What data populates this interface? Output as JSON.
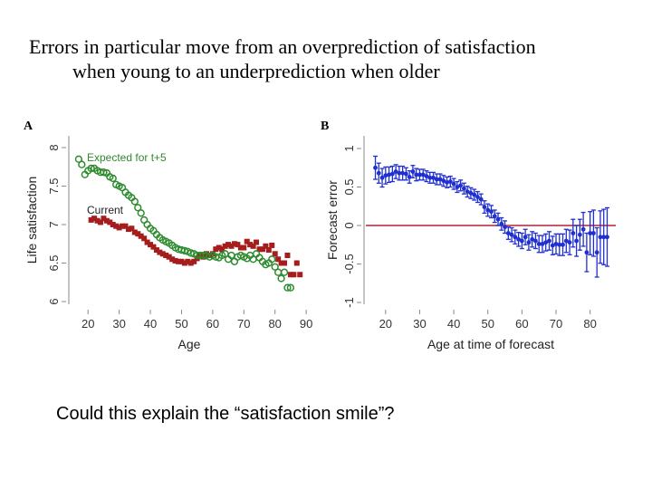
{
  "slide": {
    "title_line1": "Errors in particular move from an overprediction of satisfaction",
    "title_line2": "when young to an underprediction when older",
    "caption": "Could this explain the “satisfaction smile”?"
  },
  "colors": {
    "expected": "#2e8b2e",
    "current": "#a51d1d",
    "forecast": "#1f2fd0",
    "zero_line": "#b22234",
    "axis": "#888888"
  },
  "chart_data": [
    {
      "panel": "A",
      "type": "scatter",
      "xlabel": "Age",
      "ylabel": "Life satisfaction",
      "xlim": [
        15,
        92
      ],
      "ylim": [
        6,
        8
      ],
      "xticks": [
        "20",
        "30",
        "40",
        "50",
        "60",
        "70",
        "80",
        "90"
      ],
      "yticks": [
        "6",
        "6.5",
        "7",
        "7.5",
        "8"
      ],
      "series": [
        {
          "name": "Expected for t+5",
          "marker": "hollow-circle",
          "x": [
            17,
            18,
            19,
            20,
            21,
            22,
            23,
            24,
            25,
            26,
            27,
            28,
            29,
            30,
            31,
            32,
            33,
            34,
            35,
            36,
            37,
            38,
            39,
            40,
            41,
            42,
            43,
            44,
            45,
            46,
            47,
            48,
            49,
            50,
            51,
            52,
            53,
            54,
            55,
            56,
            57,
            58,
            59,
            60,
            61,
            62,
            63,
            64,
            65,
            66,
            67,
            68,
            69,
            70,
            71,
            72,
            73,
            74,
            75,
            76,
            77,
            78,
            79,
            80,
            81,
            82,
            83,
            84,
            85
          ],
          "y": [
            7.85,
            7.78,
            7.65,
            7.7,
            7.73,
            7.73,
            7.7,
            7.68,
            7.68,
            7.67,
            7.62,
            7.6,
            7.52,
            7.5,
            7.48,
            7.42,
            7.38,
            7.35,
            7.3,
            7.22,
            7.15,
            7.06,
            7.0,
            6.95,
            6.92,
            6.87,
            6.83,
            6.8,
            6.78,
            6.76,
            6.73,
            6.7,
            6.68,
            6.67,
            6.66,
            6.65,
            6.63,
            6.62,
            6.6,
            6.6,
            6.6,
            6.6,
            6.58,
            6.6,
            6.58,
            6.57,
            6.6,
            6.62,
            6.55,
            6.6,
            6.52,
            6.58,
            6.6,
            6.58,
            6.56,
            6.6,
            6.55,
            6.62,
            6.57,
            6.52,
            6.48,
            6.5,
            6.55,
            6.45,
            6.38,
            6.3,
            6.38,
            6.18,
            6.18
          ]
        },
        {
          "name": "Current",
          "marker": "filled-square",
          "x": [
            21,
            22,
            23,
            24,
            25,
            26,
            27,
            28,
            29,
            30,
            31,
            32,
            33,
            34,
            35,
            36,
            37,
            38,
            39,
            40,
            41,
            42,
            43,
            44,
            45,
            46,
            47,
            48,
            49,
            50,
            51,
            52,
            53,
            54,
            55,
            56,
            57,
            58,
            59,
            60,
            61,
            62,
            63,
            64,
            65,
            66,
            67,
            68,
            69,
            70,
            71,
            72,
            73,
            74,
            75,
            76,
            77,
            78,
            79,
            80,
            81,
            82,
            83,
            84,
            85,
            86,
            87,
            88
          ],
          "y": [
            7.06,
            7.08,
            7.05,
            7.03,
            7.08,
            7.05,
            7.03,
            7.0,
            6.98,
            6.96,
            6.98,
            6.98,
            6.94,
            6.95,
            6.9,
            6.88,
            6.85,
            6.82,
            6.77,
            6.74,
            6.71,
            6.67,
            6.64,
            6.62,
            6.6,
            6.58,
            6.55,
            6.53,
            6.52,
            6.52,
            6.5,
            6.52,
            6.5,
            6.52,
            6.56,
            6.6,
            6.58,
            6.62,
            6.6,
            6.62,
            6.68,
            6.7,
            6.68,
            6.72,
            6.74,
            6.72,
            6.75,
            6.74,
            6.7,
            6.7,
            6.78,
            6.74,
            6.72,
            6.77,
            6.68,
            6.68,
            6.72,
            6.67,
            6.73,
            6.62,
            6.55,
            6.5,
            6.5,
            6.6,
            6.35,
            6.35,
            6.5,
            6.35
          ]
        }
      ],
      "legend": [
        {
          "label": "Expected for t+5"
        },
        {
          "label": "Current"
        }
      ]
    },
    {
      "panel": "B",
      "type": "scatter",
      "xlabel": "Age at time of forecast",
      "ylabel": "Forecast error",
      "xlim": [
        15,
        87
      ],
      "ylim": [
        -1,
        1
      ],
      "xticks": [
        "20",
        "30",
        "40",
        "50",
        "60",
        "70",
        "80"
      ],
      "yticks": [
        "-1",
        "-0.5",
        "0",
        "0.5",
        "1"
      ],
      "reference_line_y": 0,
      "series": [
        {
          "name": "Forecast error",
          "marker": "filled-circle-with-error-bars",
          "x": [
            17,
            18,
            19,
            20,
            21,
            22,
            23,
            24,
            25,
            26,
            27,
            28,
            29,
            30,
            31,
            32,
            33,
            34,
            35,
            36,
            37,
            38,
            39,
            40,
            41,
            42,
            43,
            44,
            45,
            46,
            47,
            48,
            49,
            50,
            51,
            52,
            53,
            54,
            55,
            56,
            57,
            58,
            59,
            60,
            61,
            62,
            63,
            64,
            65,
            66,
            67,
            68,
            69,
            70,
            71,
            72,
            73,
            74,
            75,
            76,
            77,
            78,
            79,
            80,
            81,
            82,
            83,
            84,
            85
          ],
          "y": [
            0.75,
            0.68,
            0.62,
            0.65,
            0.66,
            0.67,
            0.7,
            0.68,
            0.68,
            0.67,
            0.63,
            0.7,
            0.66,
            0.66,
            0.66,
            0.64,
            0.62,
            0.62,
            0.6,
            0.6,
            0.58,
            0.56,
            0.57,
            0.54,
            0.5,
            0.52,
            0.48,
            0.44,
            0.42,
            0.4,
            0.37,
            0.34,
            0.24,
            0.2,
            0.18,
            0.12,
            0.08,
            0.02,
            -0.02,
            -0.1,
            -0.12,
            -0.15,
            -0.18,
            -0.2,
            -0.15,
            -0.22,
            -0.18,
            -0.2,
            -0.24,
            -0.24,
            -0.22,
            -0.2,
            -0.26,
            -0.24,
            -0.25,
            -0.25,
            -0.2,
            -0.22,
            -0.1,
            -0.2,
            -0.12,
            -0.05,
            -0.35,
            -0.1,
            -0.1,
            -0.35,
            -0.15,
            -0.15,
            -0.15
          ],
          "error": [
            0.15,
            0.13,
            0.12,
            0.11,
            0.1,
            0.1,
            0.09,
            0.09,
            0.09,
            0.08,
            0.08,
            0.08,
            0.08,
            0.07,
            0.07,
            0.07,
            0.07,
            0.07,
            0.07,
            0.07,
            0.07,
            0.07,
            0.07,
            0.07,
            0.07,
            0.07,
            0.07,
            0.07,
            0.07,
            0.07,
            0.07,
            0.07,
            0.08,
            0.08,
            0.08,
            0.08,
            0.08,
            0.08,
            0.08,
            0.08,
            0.09,
            0.09,
            0.09,
            0.1,
            0.1,
            0.1,
            0.1,
            0.1,
            0.11,
            0.11,
            0.11,
            0.12,
            0.12,
            0.13,
            0.14,
            0.14,
            0.15,
            0.16,
            0.18,
            0.2,
            0.2,
            0.22,
            0.25,
            0.28,
            0.3,
            0.32,
            0.34,
            0.36,
            0.38
          ]
        }
      ]
    }
  ]
}
